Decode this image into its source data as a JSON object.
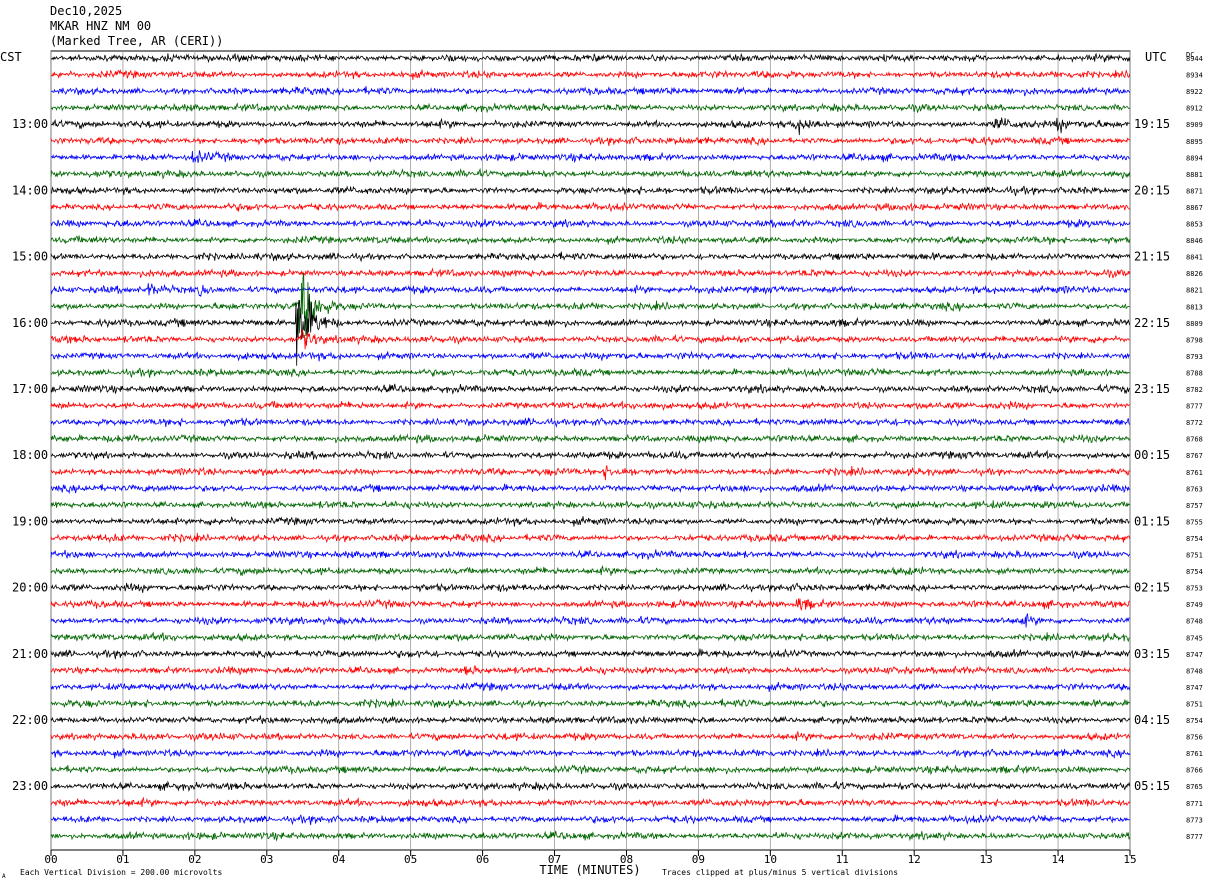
{
  "header": {
    "date": "Dec10,2025",
    "station": "MKAR HNZ NM 00",
    "location": "(Marked Tree, AR (CERI))"
  },
  "left_axis_label": "CST",
  "right_axis_label": "UTC",
  "dc_label": "DC",
  "footer": {
    "scale_note": "Each Vertical Division =  200.00 microvolts",
    "xlabel": "TIME (MINUTES)",
    "clip_note": "Traces clipped at plus/minus 5 vertical divisions",
    "corner_mark": "A"
  },
  "colors": {
    "trace_cycle": [
      "#000000",
      "#ff0000",
      "#0000ff",
      "#006600"
    ],
    "grid": "#999999"
  },
  "chart_data": {
    "type": "line",
    "subtype": "helicorder",
    "x_ticks": [
      "00",
      "01",
      "02",
      "03",
      "04",
      "05",
      "06",
      "07",
      "08",
      "09",
      "10",
      "11",
      "12",
      "13",
      "14",
      "15"
    ],
    "xlim": [
      0,
      15
    ],
    "lines_per_hour": 4,
    "minutes_per_line": 15,
    "left_time_labels": [
      "13:00",
      "14:00",
      "15:00",
      "16:00",
      "17:00",
      "18:00",
      "19:00",
      "20:00",
      "21:00",
      "22:00",
      "23:00"
    ],
    "right_time_labels": [
      "19:15",
      "20:15",
      "21:15",
      "22:15",
      "23:15",
      "00:15",
      "01:15",
      "02:15",
      "03:15",
      "04:15",
      "05:15"
    ],
    "dc_offsets": [
      8944,
      8934,
      8922,
      8912,
      8909,
      8895,
      8894,
      8881,
      8871,
      8867,
      8853,
      8846,
      8841,
      8826,
      8821,
      8813,
      8809,
      8798,
      8793,
      8788,
      8782,
      8777,
      8772,
      8768,
      8767,
      8761,
      8763,
      8757,
      8755,
      8754,
      8751,
      8754,
      8753,
      8749,
      8748,
      8745,
      8747,
      8748,
      8747,
      8751,
      8754,
      8756,
      8761,
      8766,
      8765,
      8771,
      8773,
      8777
    ],
    "events": [
      {
        "line": 14,
        "minute": 1.4,
        "amp": 1.5
      },
      {
        "line": 14,
        "minute": 2.1,
        "amp": 1.2
      },
      {
        "line": 15,
        "minute": 3.5,
        "amp": 12
      },
      {
        "line": 16,
        "minute": 3.45,
        "amp": 14
      },
      {
        "line": 17,
        "minute": 3.5,
        "amp": 3
      },
      {
        "line": 4,
        "minute": 10.4,
        "amp": 2
      },
      {
        "line": 4,
        "minute": 13.15,
        "amp": 2
      },
      {
        "line": 4,
        "minute": 14,
        "amp": 1.8
      },
      {
        "line": 25,
        "minute": 7.7,
        "amp": 1.5
      },
      {
        "line": 33,
        "minute": 10.4,
        "amp": 1.8
      },
      {
        "line": 34,
        "minute": 13.5,
        "amp": 1.5
      },
      {
        "line": 37,
        "minute": 5.8,
        "amp": 1.2
      },
      {
        "line": 6,
        "minute": 2.0,
        "amp": 1.2
      }
    ]
  }
}
